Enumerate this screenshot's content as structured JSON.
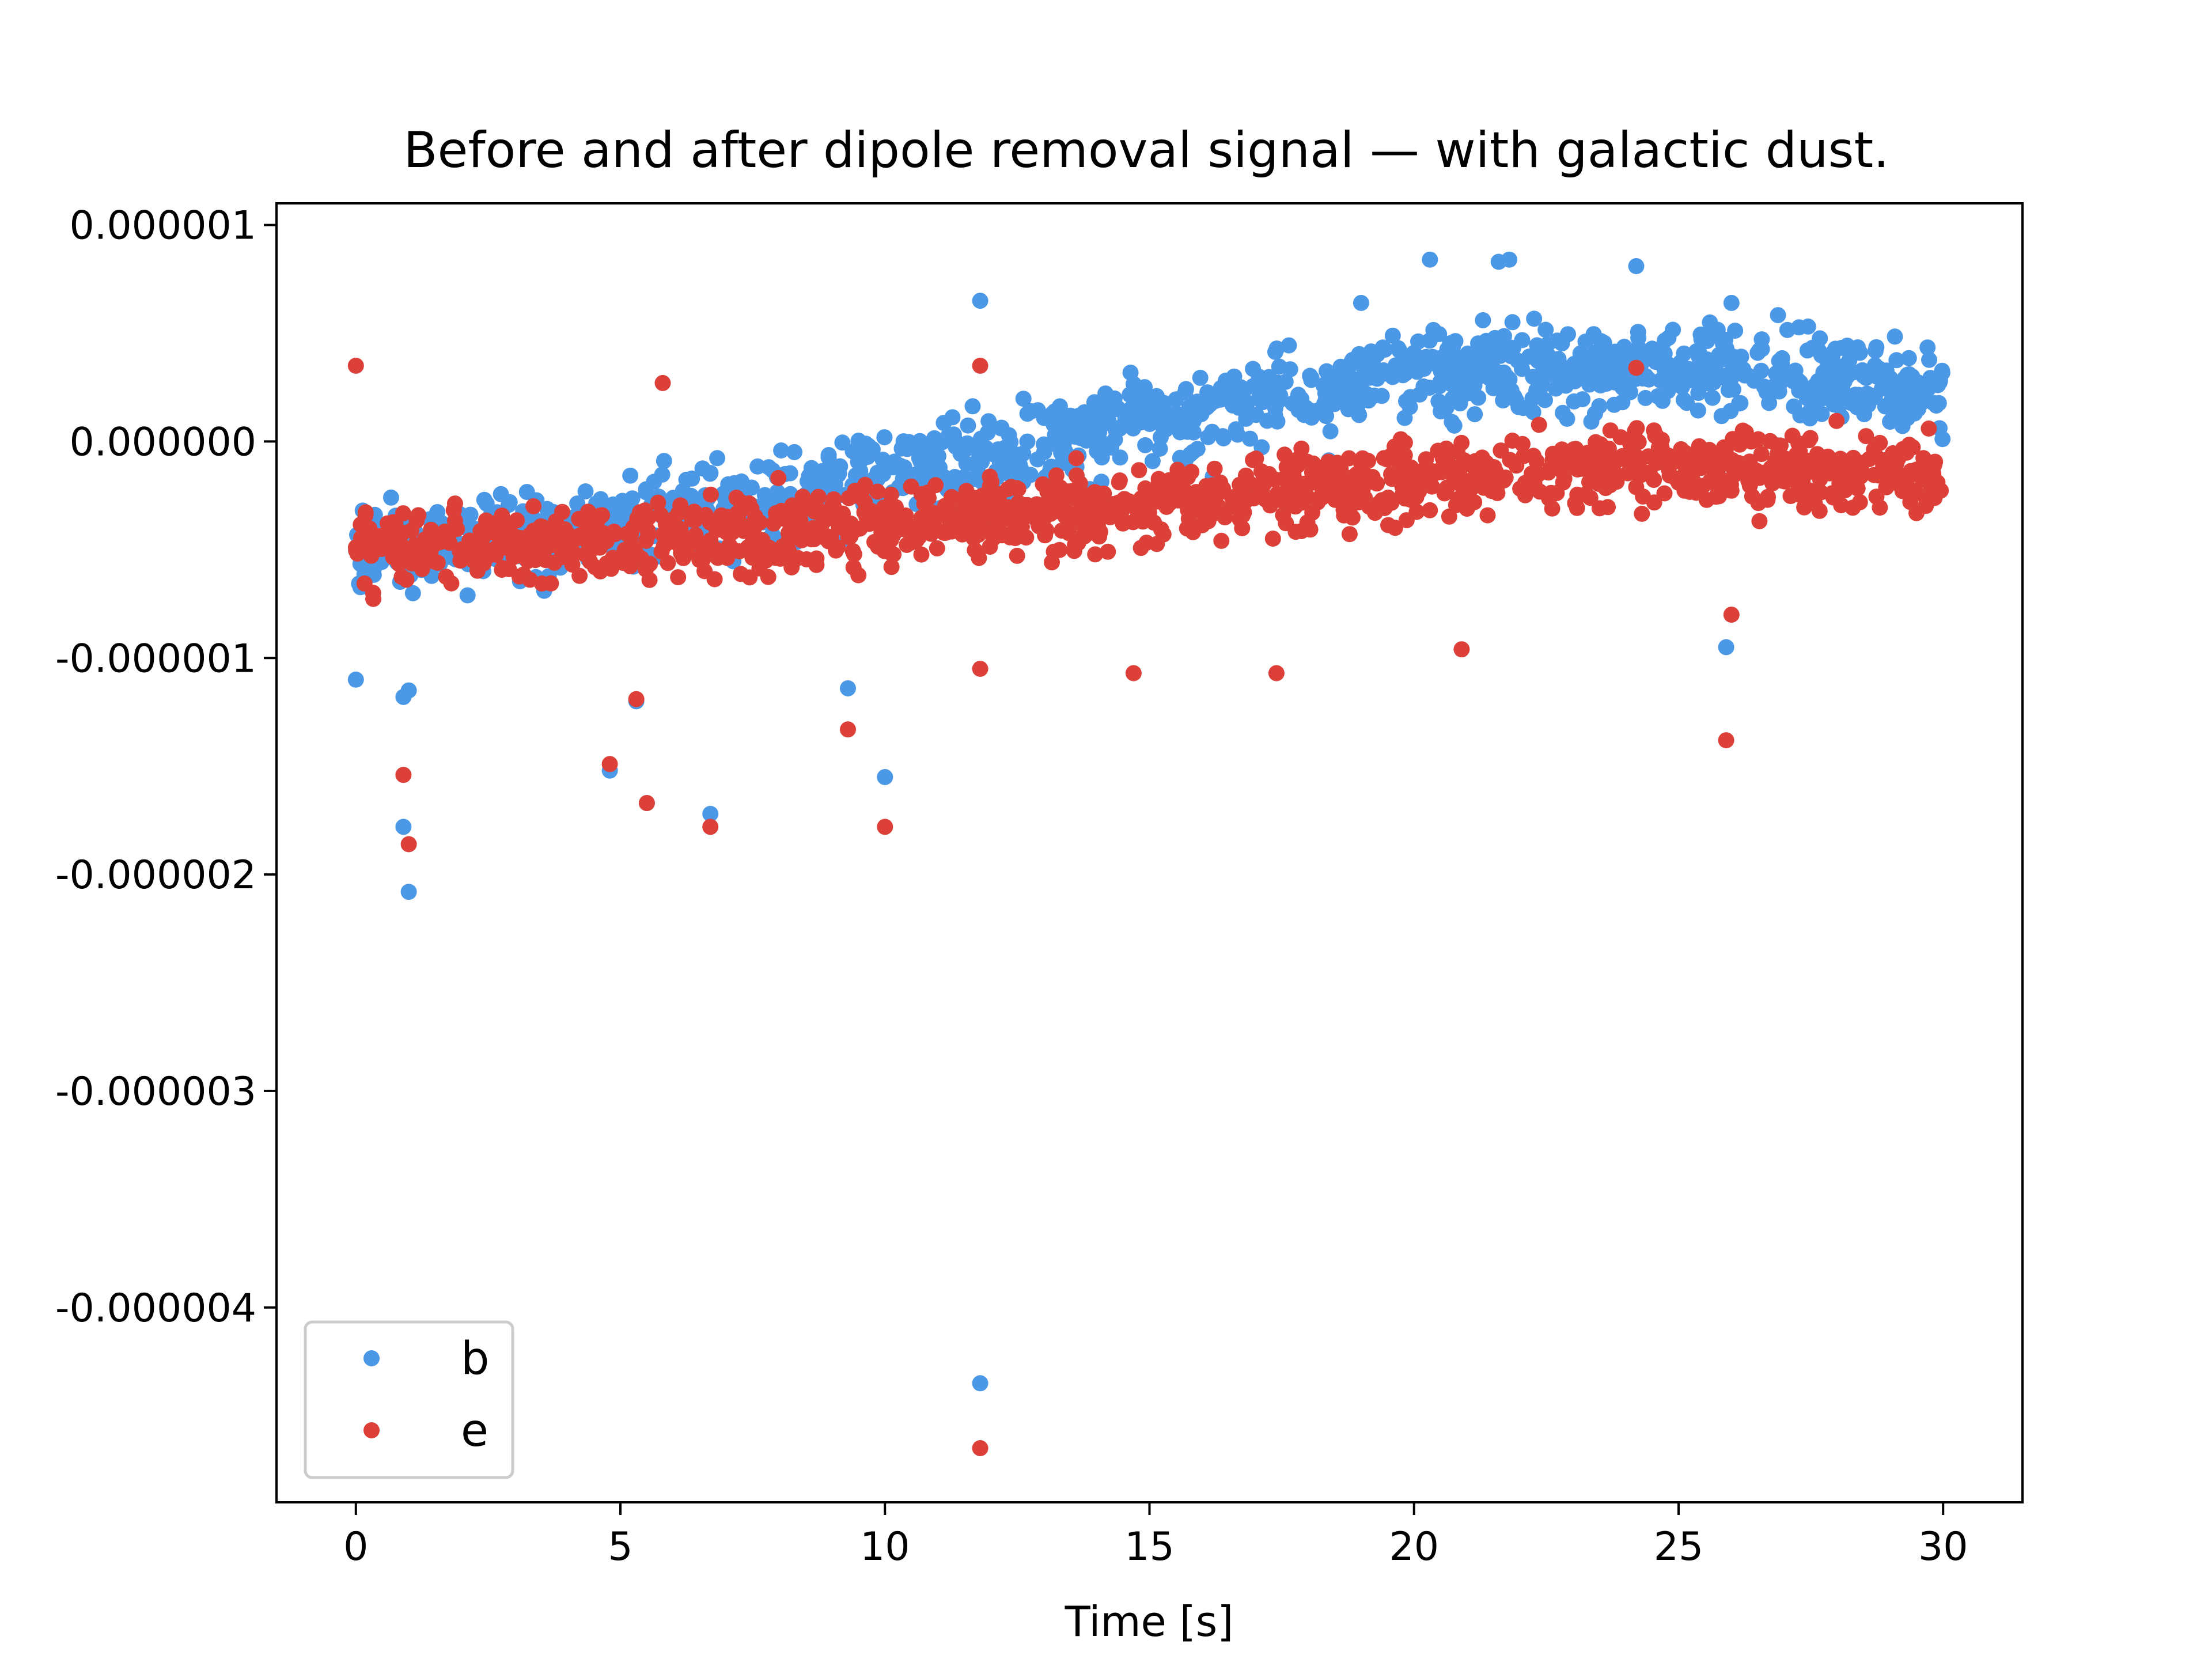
{
  "chart_data": {
    "type": "scatter",
    "title": "Before and after dipole removal signal — with galactic dust.",
    "xlabel": "Time [s]",
    "ylabel": "",
    "xlim": [
      -1.5,
      31.5
    ],
    "ylim": [
      -4.9e-06,
      1.1e-06
    ],
    "x_ticks": [
      0,
      5,
      10,
      15,
      20,
      25,
      30
    ],
    "x_tick_labels": [
      "0",
      "5",
      "10",
      "15",
      "20",
      "25",
      "30"
    ],
    "y_ticks": [
      1e-06,
      0,
      -1e-06,
      -2e-06,
      -3e-06,
      -4e-06
    ],
    "y_tick_labels": [
      "0.000001",
      "0.000000",
      "-0.000001",
      "-0.000002",
      "-0.000003",
      "-0.000004"
    ],
    "grid": false,
    "legend_placement": "lower-left",
    "colors": {
      "b": "#4a98e6",
      "e": "#dc4038"
    },
    "series": [
      {
        "name": "b",
        "color": "#4a98e6",
        "trend": {
          "x": [
            0,
            5,
            10,
            15,
            20,
            25,
            30
          ],
          "y": [
            -5e-07,
            -3.8e-07,
            -1.6e-07,
            1e-07,
            3e-07,
            3.6e-07,
            2.4e-07
          ],
          "spread": 2.6e-07,
          "count": 1300
        },
        "points": [
          {
            "x": 0.0,
            "y": -1.1e-06
          },
          {
            "x": 0.9,
            "y": -1.18e-06
          },
          {
            "x": 0.9,
            "y": -1.78e-06
          },
          {
            "x": 1.0,
            "y": -2.08e-06
          },
          {
            "x": 1.0,
            "y": -1.15e-06
          },
          {
            "x": 4.8,
            "y": -1.52e-06
          },
          {
            "x": 5.3,
            "y": -1.2e-06
          },
          {
            "x": 5.5,
            "y": -1.67e-06
          },
          {
            "x": 6.7,
            "y": -1.72e-06
          },
          {
            "x": 9.3,
            "y": -1.14e-06
          },
          {
            "x": 10.0,
            "y": -1.55e-06
          },
          {
            "x": 11.8,
            "y": -4.35e-06
          },
          {
            "x": 11.8,
            "y": 6.5e-07
          },
          {
            "x": 20.3,
            "y": 8.4e-07
          },
          {
            "x": 21.6,
            "y": 8.3e-07
          },
          {
            "x": 21.8,
            "y": 8.4e-07
          },
          {
            "x": 24.2,
            "y": 8.1e-07
          },
          {
            "x": 25.9,
            "y": -9.5e-07
          },
          {
            "x": 19.0,
            "y": 6.4e-07
          },
          {
            "x": 26.0,
            "y": 6.4e-07
          }
        ]
      },
      {
        "name": "e",
        "color": "#dc4038",
        "trend": {
          "x": [
            0,
            5,
            10,
            15,
            20,
            25,
            30
          ],
          "y": [
            -4.8e-07,
            -4.6e-07,
            -3.8e-07,
            -3e-07,
            -1.8e-07,
            -1e-07,
            -1.5e-07
          ],
          "spread": 2.2e-07,
          "count": 1300
        },
        "points": [
          {
            "x": 0.0,
            "y": 3.5e-07
          },
          {
            "x": 0.9,
            "y": -1.54e-06
          },
          {
            "x": 1.0,
            "y": -1.86e-06
          },
          {
            "x": 4.8,
            "y": -1.49e-06
          },
          {
            "x": 5.3,
            "y": -1.19e-06
          },
          {
            "x": 5.5,
            "y": -1.67e-06
          },
          {
            "x": 6.7,
            "y": -1.78e-06
          },
          {
            "x": 9.3,
            "y": -1.33e-06
          },
          {
            "x": 10.0,
            "y": -1.78e-06
          },
          {
            "x": 11.8,
            "y": -4.65e-06
          },
          {
            "x": 11.8,
            "y": 3.5e-07
          },
          {
            "x": 11.8,
            "y": -1.05e-06
          },
          {
            "x": 14.7,
            "y": -1.07e-06
          },
          {
            "x": 17.4,
            "y": -1.07e-06
          },
          {
            "x": 20.9,
            "y": -9.6e-07
          },
          {
            "x": 25.9,
            "y": -1.38e-06
          },
          {
            "x": 26.0,
            "y": -8e-07
          },
          {
            "x": 5.8,
            "y": 2.7e-07
          },
          {
            "x": 24.2,
            "y": 3.4e-07
          }
        ]
      }
    ]
  }
}
